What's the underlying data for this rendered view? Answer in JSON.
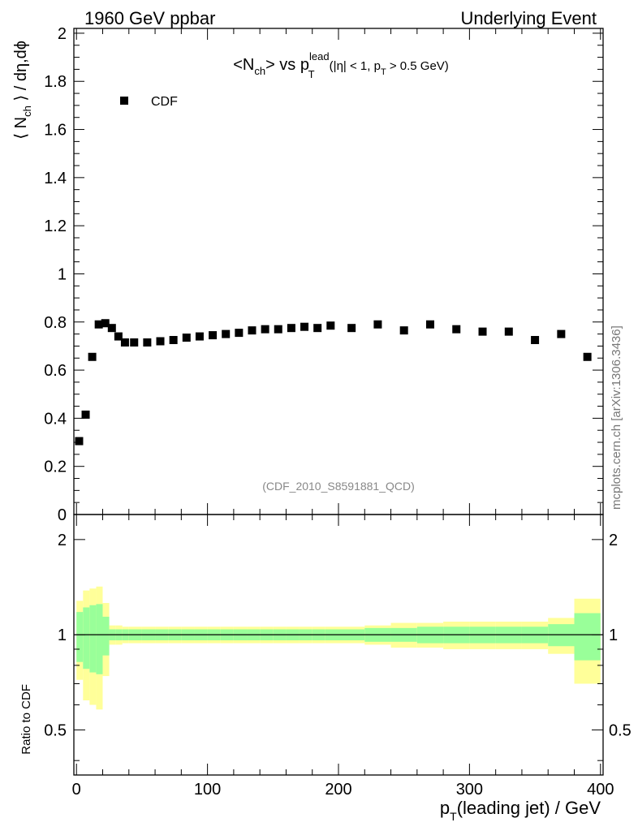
{
  "header": {
    "left": "1960 GeV ppbar",
    "right": "Underlying Event"
  },
  "main_plot": {
    "title_main": "<N",
    "title_main_sub": "ch",
    "title_mid": "> vs p",
    "title_mid_sup": "lead",
    "title_mid_sub": "T",
    "title_cut_a": " (|η| < 1, p",
    "title_cut_sub": "T",
    "title_cut_b": " > 0.5 GeV)",
    "ylabel_a": "⟨ N",
    "ylabel_sub": "ch",
    "ylabel_b": " ⟩ / dη,dϕ",
    "legend_label": "CDF",
    "analysis_tag": "(CDF_2010_S8591881_QCD)",
    "side_watermark": "mcplots.cern.ch [arXiv:1306.3436]"
  },
  "ratio_plot": {
    "ylabel": "Ratio to CDF"
  },
  "xaxis": {
    "label_a": "p",
    "label_sub": "T",
    "label_b": "(leading jet) / GeV"
  },
  "colors": {
    "marker": "#000000",
    "band_inner": "#99ff99",
    "band_outer": "#ffff99",
    "axis": "#000000",
    "tag_text": "#888888"
  },
  "chart_data": [
    {
      "type": "scatter",
      "title": "<Nch> vs pT lead (|η| < 1, pT > 0.5 GeV)",
      "xlabel": "pT(leading jet) / GeV",
      "ylabel": "⟨ Nch ⟩ / dη,dϕ",
      "xlim": [
        -2,
        402
      ],
      "ylim": [
        0,
        2.02
      ],
      "yticks": [
        0,
        0.2,
        0.4,
        0.6,
        0.8,
        1,
        1.2,
        1.4,
        1.6,
        1.8,
        2
      ],
      "ytick_labels": [
        "0",
        "0.2",
        "0.4",
        "0.6",
        "0.8",
        "1",
        "1.2",
        "1.4",
        "1.6",
        "1.8",
        "2"
      ],
      "legend": "top-left",
      "series": [
        {
          "name": "CDF",
          "x": [
            2,
            7,
            12,
            17,
            22,
            27,
            32,
            37,
            44,
            54,
            64,
            74,
            84,
            94,
            104,
            114,
            124,
            134,
            144,
            154,
            164,
            174,
            184,
            194,
            210,
            230,
            250,
            270,
            290,
            310,
            330,
            350,
            370,
            390
          ],
          "y": [
            0.305,
            0.415,
            0.655,
            0.79,
            0.795,
            0.775,
            0.74,
            0.715,
            0.715,
            0.715,
            0.72,
            0.725,
            0.735,
            0.74,
            0.745,
            0.75,
            0.755,
            0.765,
            0.77,
            0.77,
            0.775,
            0.78,
            0.775,
            0.785,
            0.775,
            0.79,
            0.765,
            0.79,
            0.77,
            0.76,
            0.76,
            0.725,
            0.75,
            0.655
          ]
        }
      ]
    },
    {
      "type": "area",
      "ylabel": "Ratio to CDF",
      "xlabel": "pT(leading jet) / GeV",
      "xlim": [
        -2,
        402
      ],
      "ylim": [
        0.36,
        2.4
      ],
      "log_y": true,
      "xticks": [
        0,
        100,
        200,
        300,
        400
      ],
      "xtick_labels": [
        "0",
        "100",
        "200",
        "300",
        "400"
      ],
      "yticks": [
        0.5,
        1,
        2
      ],
      "ytick_labels": [
        "0.5",
        "1",
        "2"
      ],
      "reference_line": 1,
      "bins": [
        0,
        5,
        10,
        15,
        20,
        25,
        30,
        35,
        40,
        50,
        60,
        70,
        80,
        90,
        100,
        110,
        120,
        130,
        140,
        150,
        160,
        170,
        180,
        190,
        200,
        220,
        240,
        260,
        280,
        300,
        320,
        340,
        360,
        380,
        400
      ],
      "band_inner_halfwidth": [
        0.18,
        0.22,
        0.24,
        0.25,
        0.14,
        0.04,
        0.04,
        0.04,
        0.04,
        0.04,
        0.04,
        0.04,
        0.04,
        0.04,
        0.04,
        0.04,
        0.04,
        0.04,
        0.04,
        0.04,
        0.04,
        0.04,
        0.04,
        0.04,
        0.04,
        0.05,
        0.05,
        0.06,
        0.06,
        0.06,
        0.06,
        0.06,
        0.08,
        0.17
      ],
      "band_outer_halfwidth": [
        0.28,
        0.38,
        0.4,
        0.42,
        0.26,
        0.07,
        0.07,
        0.06,
        0.06,
        0.06,
        0.06,
        0.06,
        0.06,
        0.06,
        0.06,
        0.06,
        0.06,
        0.06,
        0.06,
        0.06,
        0.06,
        0.06,
        0.06,
        0.06,
        0.06,
        0.07,
        0.09,
        0.09,
        0.1,
        0.1,
        0.1,
        0.1,
        0.13,
        0.3
      ]
    }
  ]
}
